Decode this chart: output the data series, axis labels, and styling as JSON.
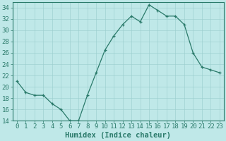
{
  "x": [
    0,
    1,
    2,
    3,
    4,
    5,
    6,
    7,
    8,
    9,
    10,
    11,
    12,
    13,
    14,
    15,
    16,
    17,
    18,
    19,
    20,
    21,
    22,
    23
  ],
  "y": [
    21,
    19,
    18.5,
    18.5,
    17,
    16,
    14,
    14,
    18.5,
    22.5,
    26.5,
    29,
    31,
    32.5,
    31.5,
    34.5,
    33.5,
    32.5,
    32.5,
    31,
    26,
    23.5,
    23,
    22.5
  ],
  "line_color": "#2a7a6a",
  "marker_color": "#2a7a6a",
  "bg_color": "#bfe8e8",
  "grid_color": "#99cccc",
  "xlabel": "Humidex (Indice chaleur)",
  "ylim": [
    14,
    35
  ],
  "xlim": [
    -0.5,
    23.5
  ],
  "yticks": [
    14,
    16,
    18,
    20,
    22,
    24,
    26,
    28,
    30,
    32,
    34
  ],
  "xticks": [
    0,
    1,
    2,
    3,
    4,
    5,
    6,
    7,
    8,
    9,
    10,
    11,
    12,
    13,
    14,
    15,
    16,
    17,
    18,
    19,
    20,
    21,
    22,
    23
  ],
  "xtick_labels": [
    "0",
    "1",
    "2",
    "3",
    "4",
    "5",
    "6",
    "7",
    "8",
    "9",
    "10",
    "11",
    "12",
    "13",
    "14",
    "15",
    "16",
    "17",
    "18",
    "19",
    "20",
    "21",
    "22",
    "23"
  ],
  "tick_fontsize": 6.5,
  "label_fontsize": 7.5
}
